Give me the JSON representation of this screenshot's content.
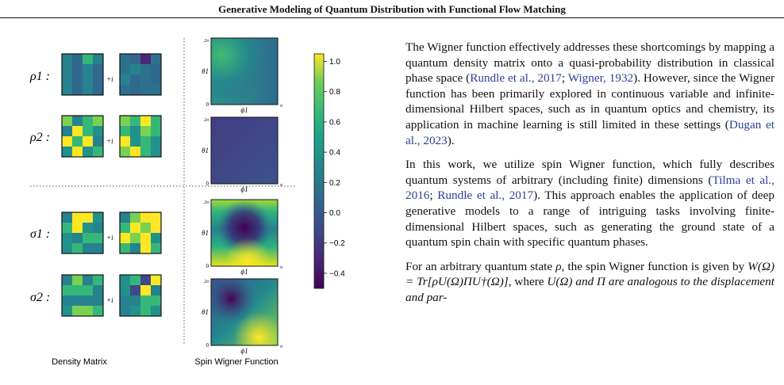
{
  "header": {
    "title": "Generative Modeling of Quantum Distribution with Functional Flow Matching"
  },
  "figure": {
    "row_labels": [
      "ρ1 :",
      "ρ2 :",
      "σ1 :",
      "σ2 :"
    ],
    "plus_i": "+i",
    "axis": {
      "y_top": "2π",
      "y_label": "θ1",
      "x_zero": "0",
      "x_label": "ϕ1",
      "x_end": "π"
    },
    "colorbar_ticks": [
      "1.0",
      "0.8",
      "0.6",
      "0.4",
      "0.2",
      "0.0",
      "−0.2",
      "−0.4"
    ],
    "colorbar_values": [
      1.0,
      0.8,
      0.6,
      0.4,
      0.2,
      0.0,
      -0.2,
      -0.4
    ],
    "colorbar_range": [
      -0.5,
      1.05
    ],
    "captions": {
      "density": "Density Matrix",
      "wigner": "Spin Wigner Function"
    }
  },
  "body": {
    "p1": {
      "a": "The Wigner function effectively addresses these shortcomings by mapping a quantum density matrix onto a quasi-probability distribution in classical phase space (",
      "c1": "Rundle et al., 2017",
      "s1": "; ",
      "c2": "Wigner, 1932",
      "b": "). However, since the Wigner function has been primarily explored in continuous variable and infinite-dimensional Hilbert spaces, such as in quantum optics and chemistry, its application in machine learning is still limited in these settings (",
      "c3": "Dugan et al., 2023",
      "e": ")."
    },
    "p2": {
      "a": "In this work, we utilize spin Wigner function, which fully describes quantum systems of arbitrary (including finite) dimensions (",
      "c1": "Tilma et al., 2016",
      "s1": "; ",
      "c2": "Rundle et al., 2017",
      "b": "). This approach enables the application of deep generative models to a range of intriguing tasks involving finite-dimensional Hilbert spaces, such as generating the ground state of a quantum spin chain with specific quantum phases."
    },
    "p3": {
      "a": "For an arbitrary quantum state ",
      "rho": "ρ",
      "b": ", the spin Wigner function is given by ",
      "eq": "W(Ω) = Tr[ρU(Ω)ΠU†(Ω)]",
      "c": ", where ",
      "eq2": "U(Ω) and Π are analogous to the displacement and par-"
    }
  }
}
